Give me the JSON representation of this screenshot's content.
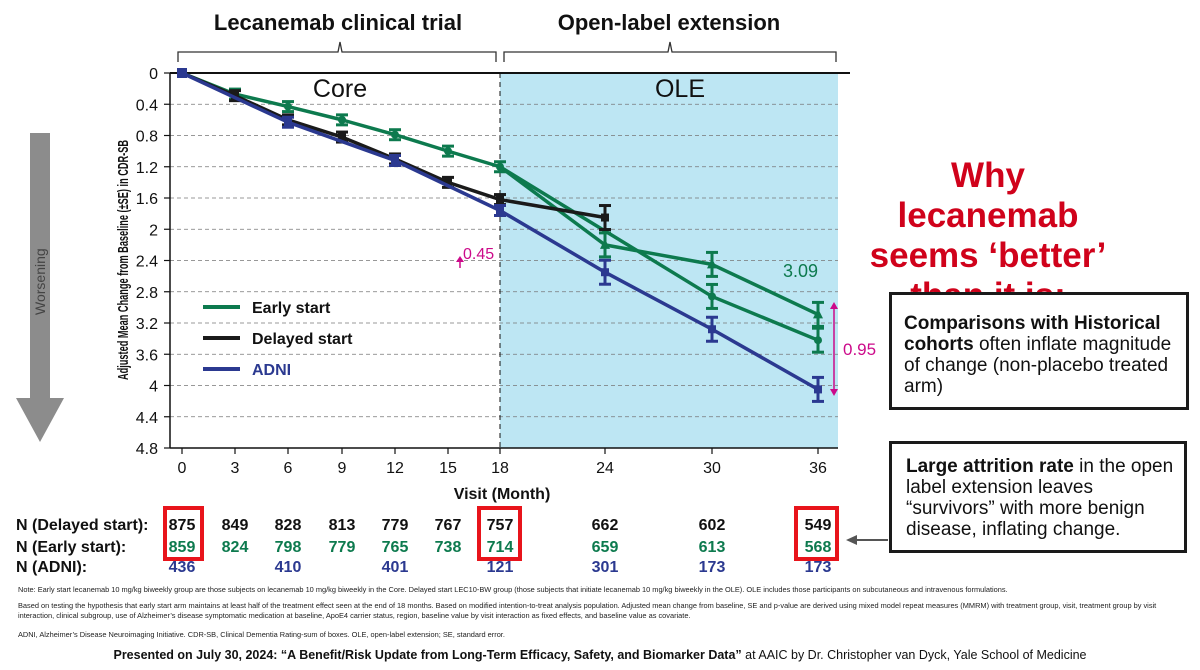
{
  "chart_data": {
    "type": "line",
    "title": "",
    "ylabel": "Adjusted Mean Change from Baseline (±SE) in CDR-SB",
    "xlabel": "Visit (Month)",
    "ylim": [
      0,
      4.8
    ],
    "y_inverted": true,
    "y_ticks": [
      "0",
      "0.4",
      "0.8",
      "1.2",
      "1.6",
      "2",
      "2.4",
      "2.8",
      "3.2",
      "3.6",
      "4",
      "4.4",
      "4.8"
    ],
    "x_ticks": [
      "0",
      "3",
      "6",
      "9",
      "12",
      "15",
      "18",
      "24",
      "30",
      "36"
    ],
    "grid": "horizontal dashed",
    "legend_position": "lower-left",
    "phase_brackets": [
      {
        "label": "Lecanemab clinical trial",
        "region": "Core"
      },
      {
        "label": "Open-label extension",
        "region": "OLE"
      }
    ],
    "series": [
      {
        "name": "Early start",
        "color": "#0d7a4e",
        "marker": "diamond",
        "points": [
          [
            0,
            0
          ],
          [
            3,
            0.27
          ],
          [
            6,
            0.43
          ],
          [
            9,
            0.6
          ],
          [
            12,
            0.79
          ],
          [
            15,
            1.0
          ],
          [
            18,
            1.2
          ],
          [
            30,
            2.86
          ],
          [
            36,
            3.42
          ]
        ]
      },
      {
        "name": "Early start",
        "color": "#0d7a4e",
        "marker": "triangle",
        "points": [
          [
            18,
            1.2
          ],
          [
            24,
            2.2
          ],
          [
            30,
            2.45
          ],
          [
            36,
            3.09
          ]
        ]
      },
      {
        "name": "Delayed start",
        "color": "#1a1a1a",
        "marker": "square",
        "points": [
          [
            0,
            0
          ],
          [
            3,
            0.29
          ],
          [
            6,
            0.6
          ],
          [
            9,
            0.82
          ],
          [
            12,
            1.1
          ],
          [
            15,
            1.4
          ],
          [
            18,
            1.62
          ],
          [
            24,
            1.85
          ]
        ]
      },
      {
        "name": "ADNI",
        "color": "#2b3990",
        "marker": "square",
        "points": [
          [
            0,
            0
          ],
          [
            6,
            0.63
          ],
          [
            12,
            1.12
          ],
          [
            18,
            1.76
          ],
          [
            24,
            2.55
          ],
          [
            30,
            3.28
          ],
          [
            36,
            4.05
          ]
        ]
      }
    ],
    "annotations": [
      {
        "text": "0.45",
        "color": "#cc0a8a"
      },
      {
        "text": "3.09",
        "color": "#0d7a4e"
      },
      {
        "text": "0.95",
        "color": "#cc0a8a"
      }
    ],
    "legend": [
      {
        "label": "Early start",
        "color": "#0d7a4e"
      },
      {
        "label": "Delayed start",
        "color": "#1a1a1a"
      },
      {
        "label": "ADNI",
        "color": "#2b3990"
      }
    ]
  },
  "bracket_labels": {
    "trial": "Lecanemab clinical trial",
    "ole_ext": "Open-label extension"
  },
  "region_labels": {
    "core": "Core",
    "ole": "OLE"
  },
  "worsening_label": "Worsening",
  "counts": {
    "delayed": {
      "label": "N (Delayed start):",
      "values": [
        "875",
        "849",
        "828",
        "813",
        "779",
        "767",
        "757",
        "662",
        "602",
        "549"
      ]
    },
    "early": {
      "label": "N (Early start):",
      "values": [
        "859",
        "824",
        "798",
        "779",
        "765",
        "738",
        "714",
        "659",
        "613",
        "568"
      ]
    },
    "adni": {
      "label": "N (ADNI):",
      "values": [
        "436",
        "",
        "410",
        "",
        "401",
        "",
        "121",
        "301",
        "173",
        "173"
      ]
    }
  },
  "headline": [
    "Why lecanemab",
    "seems ‘better’",
    "than it is:"
  ],
  "box1": {
    "bold": "Comparisons with Historical cohorts",
    "rest": " often inflate magnitude of change (non-placebo treated arm)"
  },
  "box2": {
    "bold": "Large attrition rate",
    "rest": " in the open label extension leaves “survivors” with more benign disease, inflating change."
  },
  "notes": {
    "n1": "Note: Early start lecanemab 10 mg/kg biweekly group are those subjects on lecanemab 10 mg/kg biweekly in the Core. Delayed start LEC10-BW group (those subjects that initiate lecanemab 10 mg/kg biweekly in the OLE). OLE includes those participants on subcutaneous and intravenous formulations.",
    "n2": "Based on testing the hypothesis that early start arm maintains at least half of the treatment effect seen at the end of 18 months. Based on modified intention-to-treat analysis population. Adjusted mean change from baseline, SE and p-value are derived using mixed model repeat measures (MMRM) with treatment group, visit, treatment group by visit interaction, clinical subgroup, use of Alzheimer’s disease symptomatic medication at baseline, ApoE4 carrier status, region, baseline value by visit interaction as fixed effects, and baseline value as covariate.",
    "n3": "ADNI, Alzheimer’s Disease Neuroimaging Initiative. CDR-SB, Clinical Dementia Rating-sum of boxes. OLE, open-label extension; SE, standard error."
  },
  "presented": {
    "bold": "Presented on July 30, 2024: “A Benefit/Risk Update from Long-Term Efficacy, Safety, and Biomarker Data”",
    "rest": " at AAIC by Dr. Christopher van Dyck, Yale School of Medicine"
  }
}
